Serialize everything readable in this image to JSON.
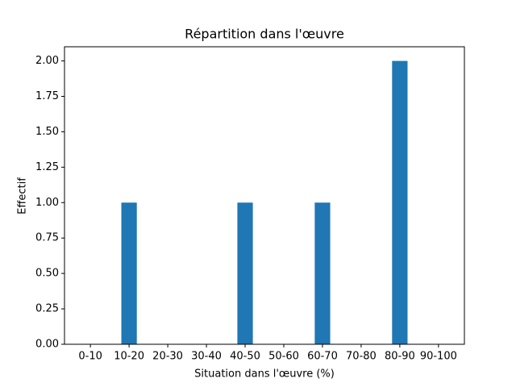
{
  "chart_data": {
    "type": "bar",
    "title": "Répartition dans l'œuvre",
    "x_label": "Situation dans l'œuvre (%)",
    "y_label": "Effectif",
    "categories": [
      "0-10",
      "10-20",
      "20-30",
      "30-40",
      "40-50",
      "50-60",
      "60-70",
      "70-80",
      "80-90",
      "90-100"
    ],
    "values": [
      0,
      1,
      0,
      0,
      1,
      0,
      1,
      0,
      2,
      0
    ],
    "color": "#1f77b4",
    "ylim": [
      0,
      2.1
    ],
    "yticks": [
      {
        "value": 0,
        "label": "0.00"
      },
      {
        "value": 0.25,
        "label": "0.25"
      },
      {
        "value": 0.5,
        "label": "0.50"
      },
      {
        "value": 0.75,
        "label": "0.75"
      },
      {
        "value": 1,
        "label": "1.00"
      },
      {
        "value": 1.25,
        "label": "1.25"
      },
      {
        "value": 1.5,
        "label": "1.50"
      },
      {
        "value": 1.75,
        "label": "1.75"
      },
      {
        "value": 2,
        "label": "2.00"
      }
    ]
  }
}
